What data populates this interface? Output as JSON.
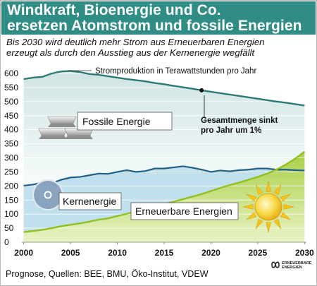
{
  "header": {
    "title_line1": "Windkraft, Bioenergie und Co.",
    "title_line2": "ersetzen Atomstrom und fossile Energien",
    "subtitle_line1": "Bis 2030 wird deutlich mehr Strom aus Erneuerbaren Energien",
    "subtitle_line2": "erzeugt als durch den Ausstieg aus der Kernenergie wegfällt"
  },
  "footer": {
    "source": "Prognose, Quellen: BEE, BMU, Öko-Institut, VDEW",
    "logo_line1": "ERNEUERBARE",
    "logo_line2": "ENERGIEN"
  },
  "colors": {
    "header": "#2f8d86",
    "total_line": "#2c7a74",
    "nuclear_line": "#1f5f86",
    "renewable_line": "#93c021",
    "fossil_area_top": "#cfe4e3",
    "fossil_area_bottom": "#f7fbfb",
    "nuclear_area": "#bfe0ec",
    "renewable_area_top": "#a9cf46",
    "renewable_area_bottom": "#e8f3c5"
  },
  "chart_data": {
    "type": "area",
    "x": [
      2000,
      2001,
      2002,
      2003,
      2004,
      2005,
      2006,
      2007,
      2008,
      2009,
      2010,
      2011,
      2012,
      2013,
      2014,
      2015,
      2016,
      2017,
      2018,
      2019,
      2020,
      2021,
      2022,
      2023,
      2024,
      2025,
      2026,
      2027,
      2028,
      2029,
      2030
    ],
    "series": [
      {
        "name": "Fossile Energie",
        "role": "total",
        "values": [
          580,
          585,
          588,
          600,
          607,
          609,
          605,
          598,
          595,
          590,
          585,
          580,
          576,
          572,
          566,
          562,
          556,
          551,
          546,
          540,
          535,
          530,
          525,
          520,
          515,
          510,
          505,
          500,
          496,
          491,
          486
        ]
      },
      {
        "name": "Kernenergie",
        "values": [
          201,
          205,
          212,
          210,
          222,
          230,
          232,
          238,
          244,
          243,
          250,
          256,
          250,
          253,
          262,
          262,
          266,
          270,
          265,
          258,
          250,
          255,
          252,
          256,
          258,
          262,
          262,
          258,
          258,
          256,
          255
        ]
      },
      {
        "name": "Erneuerbare Energien",
        "values": [
          36,
          40,
          44,
          50,
          57,
          62,
          67,
          73,
          80,
          85,
          93,
          101,
          110,
          118,
          127,
          136,
          144,
          153,
          162,
          171,
          182,
          193,
          203,
          212,
          222,
          232,
          244,
          258,
          276,
          297,
          322
        ]
      }
    ],
    "annotations": [
      "Stromproduktion in Terawattstunden pro Jahr",
      "Gesamtmenge sinkt pro Jahr um 1%"
    ],
    "marker": {
      "x": 2019,
      "y": 540
    },
    "xlabel": "",
    "ylabel": "",
    "xlim": [
      1999.8,
      2030.2
    ],
    "ylim": [
      0,
      600
    ],
    "yticks": [
      0,
      50,
      100,
      150,
      200,
      250,
      300,
      350,
      400,
      450,
      500,
      550,
      600
    ],
    "xticks": [
      2000,
      2005,
      2010,
      2015,
      2020,
      2025,
      2030
    ],
    "grid": true
  }
}
